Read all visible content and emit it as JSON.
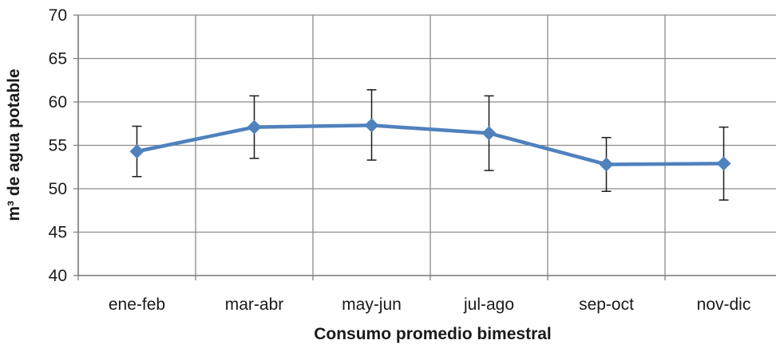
{
  "chart_data": {
    "type": "line",
    "title": "",
    "xlabel": "Consumo promedio bimestral",
    "ylabel": "m³ de agua potable",
    "categories": [
      "ene-feb",
      "mar-abr",
      "may-jun",
      "jul-ago",
      "sep-oct",
      "nov-dic"
    ],
    "series": [
      {
        "values": [
          54.3,
          57.1,
          57.3,
          56.4,
          52.8,
          52.9
        ],
        "error_upper": [
          57.2,
          60.7,
          61.4,
          60.7,
          55.9,
          57.1
        ],
        "error_lower": [
          51.4,
          53.5,
          53.3,
          52.1,
          49.7,
          48.7
        ]
      }
    ],
    "ylim": [
      40,
      70
    ],
    "yticks": [
      40,
      45,
      50,
      55,
      60,
      65,
      70
    ],
    "grid": true,
    "line_color": "#4f81bd",
    "marker": "diamond",
    "legend": "none"
  }
}
